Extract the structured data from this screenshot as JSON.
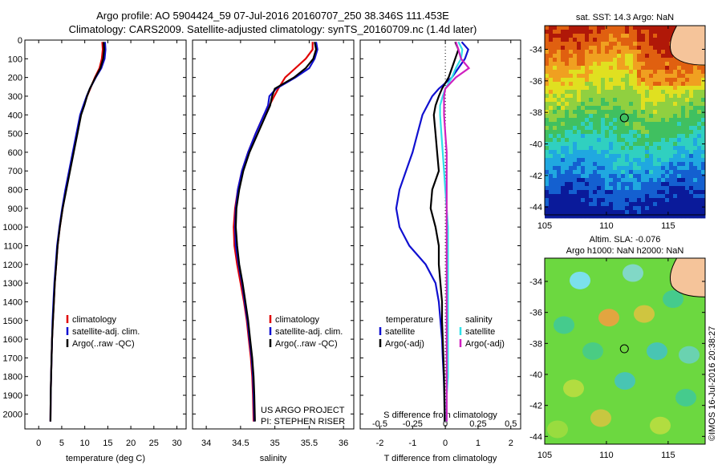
{
  "header": {
    "line1": "Argo profile: AO 5904424_59 07-Jul-2016 20160707_250 38.346S 111.453E",
    "line2": "Climatology: CARS2009. Satellite-adjusted climatology: synTS_20160709.nc (1.4d later)"
  },
  "colors": {
    "climatology": "#e00000",
    "satellite": "#1010d0",
    "argo": "#000000",
    "sat_salinity": "#30e0e8",
    "argo_salinity": "#d020c0"
  },
  "chart_data": [
    {
      "type": "line",
      "id": "temperature",
      "xlabel": "temperature (deg C)",
      "ylabel": "",
      "xlim": [
        -3,
        32
      ],
      "ylim": [
        2080,
        0
      ],
      "x_ticks": [
        0,
        5,
        10,
        15,
        20,
        25,
        30
      ],
      "y_ticks": [
        0,
        100,
        200,
        300,
        400,
        500,
        600,
        700,
        800,
        900,
        1000,
        1100,
        1200,
        1300,
        1400,
        1500,
        1600,
        1700,
        1800,
        1900,
        2000
      ],
      "legend": [
        "climatology",
        "satellite-adj. clim.",
        "Argo(..raw -QC)"
      ],
      "series": [
        {
          "name": "climatology",
          "color_key": "climatology",
          "x": [
            13.8,
            13.9,
            13.7,
            13.2,
            12.2,
            11.2,
            10.5,
            9.8,
            9.1,
            8.3,
            7.5,
            6.7,
            5.9,
            5.2,
            4.6,
            4.1,
            3.8,
            3.5,
            3.3,
            3.1,
            2.9,
            2.8,
            2.7,
            2.6,
            2.55
          ],
          "y": [
            10,
            50,
            100,
            150,
            200,
            260,
            300,
            350,
            400,
            500,
            600,
            700,
            800,
            900,
            1000,
            1100,
            1200,
            1300,
            1400,
            1500,
            1600,
            1700,
            1800,
            1900,
            2040
          ]
        },
        {
          "name": "satellite-adj. clim.",
          "color_key": "satellite",
          "x": [
            14.4,
            14.5,
            14.3,
            13.6,
            12.4,
            11.1,
            10.4,
            9.7,
            9.0,
            8.2,
            7.4,
            6.6,
            5.8,
            5.1,
            4.5,
            4.0,
            3.7,
            3.4,
            3.2,
            3.0,
            2.9,
            2.8,
            2.7,
            2.6,
            2.55
          ],
          "y": [
            10,
            50,
            100,
            150,
            200,
            260,
            300,
            350,
            400,
            500,
            600,
            700,
            800,
            900,
            1000,
            1100,
            1200,
            1300,
            1400,
            1500,
            1600,
            1700,
            1800,
            1900,
            2040
          ]
        },
        {
          "name": "Argo(..raw -QC)",
          "color_key": "argo",
          "x": [
            14.1,
            14.2,
            14.0,
            13.4,
            12.3,
            11.1,
            10.5,
            9.9,
            9.2,
            8.4,
            7.6,
            6.8,
            6.0,
            5.2,
            4.6,
            4.1,
            3.8,
            3.5,
            3.3,
            3.1,
            2.9,
            2.8,
            2.7,
            2.6,
            2.55
          ],
          "y": [
            10,
            50,
            100,
            150,
            200,
            260,
            300,
            350,
            400,
            500,
            600,
            700,
            800,
            900,
            1000,
            1100,
            1200,
            1300,
            1400,
            1500,
            1600,
            1700,
            1800,
            1900,
            2040
          ]
        }
      ]
    },
    {
      "type": "line",
      "id": "salinity",
      "xlabel": "salinity",
      "ylabel": "",
      "xlim": [
        33.8,
        36.15
      ],
      "ylim": [
        2080,
        0
      ],
      "x_ticks": [
        34,
        34.5,
        35,
        35.5,
        36
      ],
      "x_tick_labels": [
        "34",
        "34.5",
        "35",
        "35.5",
        "36"
      ],
      "legend": [
        "climatology",
        "satellite-adj. clim.",
        "Argo(..raw -QC)"
      ],
      "annotation_lines": [
        "US ARGO PROJECT",
        "PI: STEPHEN RISER"
      ],
      "series": [
        {
          "name": "climatology",
          "color_key": "climatology",
          "x": [
            35.55,
            35.55,
            35.45,
            35.3,
            35.15,
            35.05,
            34.99,
            34.92,
            34.84,
            34.72,
            34.61,
            34.52,
            34.46,
            34.42,
            34.4,
            34.41,
            34.45,
            34.5,
            34.55,
            34.59,
            34.62,
            34.65,
            34.67,
            34.68,
            34.69
          ],
          "y": [
            10,
            50,
            100,
            150,
            200,
            260,
            300,
            350,
            400,
            500,
            600,
            700,
            800,
            900,
            1000,
            1100,
            1200,
            1300,
            1400,
            1500,
            1600,
            1700,
            1800,
            1900,
            2040
          ]
        },
        {
          "name": "satellite-adj. clim.",
          "color_key": "satellite",
          "x": [
            35.6,
            35.62,
            35.58,
            35.5,
            35.3,
            35.02,
            34.92,
            34.9,
            34.84,
            34.72,
            34.61,
            34.52,
            34.46,
            34.43,
            34.42,
            34.43,
            34.47,
            34.52,
            34.56,
            34.6,
            34.63,
            34.66,
            34.68,
            34.69,
            34.7
          ],
          "y": [
            10,
            50,
            100,
            150,
            200,
            260,
            300,
            350,
            400,
            500,
            600,
            700,
            800,
            900,
            1000,
            1100,
            1200,
            1300,
            1400,
            1500,
            1600,
            1700,
            1800,
            1900,
            2040
          ]
        },
        {
          "name": "Argo(..raw -QC)",
          "color_key": "argo",
          "x": [
            35.58,
            35.6,
            35.56,
            35.45,
            35.28,
            35.0,
            34.96,
            34.93,
            34.87,
            34.75,
            34.63,
            34.54,
            34.48,
            34.44,
            34.43,
            34.45,
            34.48,
            34.53,
            34.57,
            34.61,
            34.64,
            34.67,
            34.69,
            34.7,
            34.71
          ],
          "y": [
            10,
            50,
            100,
            150,
            200,
            260,
            300,
            350,
            400,
            500,
            600,
            700,
            800,
            900,
            1000,
            1100,
            1200,
            1300,
            1400,
            1500,
            1600,
            1700,
            1800,
            1900,
            2040
          ]
        }
      ]
    },
    {
      "type": "line",
      "id": "difference",
      "xlabel": "T difference from climatology",
      "x2label": "S difference from climatology",
      "ylabel": "",
      "xlim": [
        -2.6,
        2.3
      ],
      "x2lim": [
        -0.65,
        0.575
      ],
      "ylim": [
        2080,
        0
      ],
      "x_ticks": [
        -2,
        -1,
        0,
        1,
        2
      ],
      "x2_ticks": [
        -0.5,
        -0.25,
        0,
        0.25,
        0.5
      ],
      "x2_tick_labels": [
        "-0.5",
        "-0.25",
        "0",
        "0.25",
        "0.5"
      ],
      "legend": {
        "temperature_title": "temperature",
        "salinity_title": "salinity",
        "temperature": [
          "satellite",
          "Argo(-adj)"
        ],
        "salinity": [
          "satellite",
          "Argo(-adj)"
        ]
      },
      "series": [
        {
          "name": "satellite",
          "color_key": "satellite",
          "axis": "T",
          "x": [
            0.5,
            0.7,
            0.6,
            0.4,
            0.2,
            -0.2,
            -0.4,
            -0.55,
            -0.7,
            -0.85,
            -1.0,
            -1.2,
            -1.4,
            -1.5,
            -1.4,
            -1.1,
            -0.6,
            -0.3,
            -0.2,
            -0.15,
            -0.1,
            -0.08,
            -0.05,
            -0.03,
            -0.02
          ],
          "y": [
            10,
            50,
            100,
            150,
            200,
            260,
            300,
            350,
            400,
            500,
            600,
            700,
            800,
            900,
            1000,
            1100,
            1200,
            1300,
            1400,
            1500,
            1600,
            1700,
            1800,
            1900,
            2040
          ]
        },
        {
          "name": "Argo(-adj)",
          "color_key": "argo",
          "axis": "T",
          "x": [
            0.3,
            0.4,
            0.3,
            0.2,
            0.1,
            -0.1,
            -0.2,
            -0.3,
            -0.35,
            -0.3,
            -0.25,
            -0.2,
            -0.4,
            -0.45,
            -0.3,
            -0.2,
            -0.2,
            -0.15,
            -0.1,
            -0.1,
            -0.08,
            -0.06,
            -0.04,
            -0.03,
            -0.02
          ],
          "y": [
            10,
            50,
            100,
            150,
            200,
            260,
            300,
            350,
            400,
            500,
            600,
            700,
            800,
            900,
            1000,
            1100,
            1200,
            1300,
            1400,
            1500,
            1600,
            1700,
            1800,
            1900,
            2040
          ]
        },
        {
          "name": "satellite",
          "color_key": "sat_salinity",
          "axis": "S",
          "x": [
            0.1,
            0.13,
            0.12,
            0.08,
            0.05,
            0.0,
            -0.02,
            -0.04,
            -0.04,
            -0.03,
            -0.02,
            -0.01,
            0.0,
            0.01,
            0.02,
            0.02,
            0.02,
            0.02,
            0.02,
            0.02,
            0.02,
            0.02,
            0.02,
            0.01,
            0.01
          ],
          "y": [
            10,
            50,
            100,
            150,
            200,
            260,
            300,
            350,
            400,
            500,
            600,
            700,
            800,
            900,
            1000,
            1100,
            1200,
            1300,
            1400,
            1500,
            1600,
            1700,
            1800,
            1900,
            2040
          ]
        },
        {
          "name": "Argo(-adj)",
          "color_key": "argo_salinity",
          "axis": "S",
          "x": [
            0.08,
            0.1,
            0.12,
            0.18,
            0.08,
            0.0,
            -0.01,
            -0.01,
            -0.01,
            0.0,
            0.01,
            0.01,
            0.01,
            0.01,
            0.01,
            0.01,
            0.01,
            0.01,
            0.01,
            0.01,
            0.01,
            0.01,
            0.01,
            0.01,
            0.01
          ],
          "y": [
            10,
            50,
            100,
            150,
            200,
            260,
            300,
            350,
            400,
            500,
            600,
            700,
            800,
            900,
            1000,
            1100,
            1200,
            1300,
            1400,
            1500,
            1600,
            1700,
            1800,
            1900,
            2040
          ]
        }
      ]
    },
    {
      "type": "heatmap",
      "id": "sst_map",
      "title": "sat. SST: 14.3  Argo: NaN",
      "xlim": [
        105,
        118
      ],
      "ylim": [
        -44.5,
        -32.5
      ],
      "x_ticks": [
        105,
        110,
        115
      ],
      "y_ticks": [
        -34,
        -36,
        -38,
        -40,
        -42,
        -44
      ],
      "marker": {
        "lon": 111.453,
        "lat": -38.346
      },
      "colorscale": [
        "#0a1a9a",
        "#1460d0",
        "#20a8e0",
        "#30d0c0",
        "#40c060",
        "#90d040",
        "#e0e020",
        "#f0a020",
        "#e06010",
        "#b01808"
      ],
      "land_color": "#f5c49a"
    },
    {
      "type": "heatmap",
      "id": "sla_map",
      "title": "Altim. SLA: -0.076",
      "subtitle": "Argo h1000: NaN h2000: NaN",
      "xlim": [
        105,
        118
      ],
      "ylim": [
        -44.5,
        -32.5
      ],
      "x_ticks": [
        105,
        110,
        115
      ],
      "y_ticks": [
        -34,
        -36,
        -38,
        -40,
        -42,
        -44
      ],
      "marker": {
        "lon": 111.453,
        "lat": -38.346
      },
      "base_color": "#6cd840",
      "land_color": "#f5c49a"
    }
  ],
  "footer": {
    "stamp": "©IMOS 16-Jul-2016 20:38:27"
  }
}
